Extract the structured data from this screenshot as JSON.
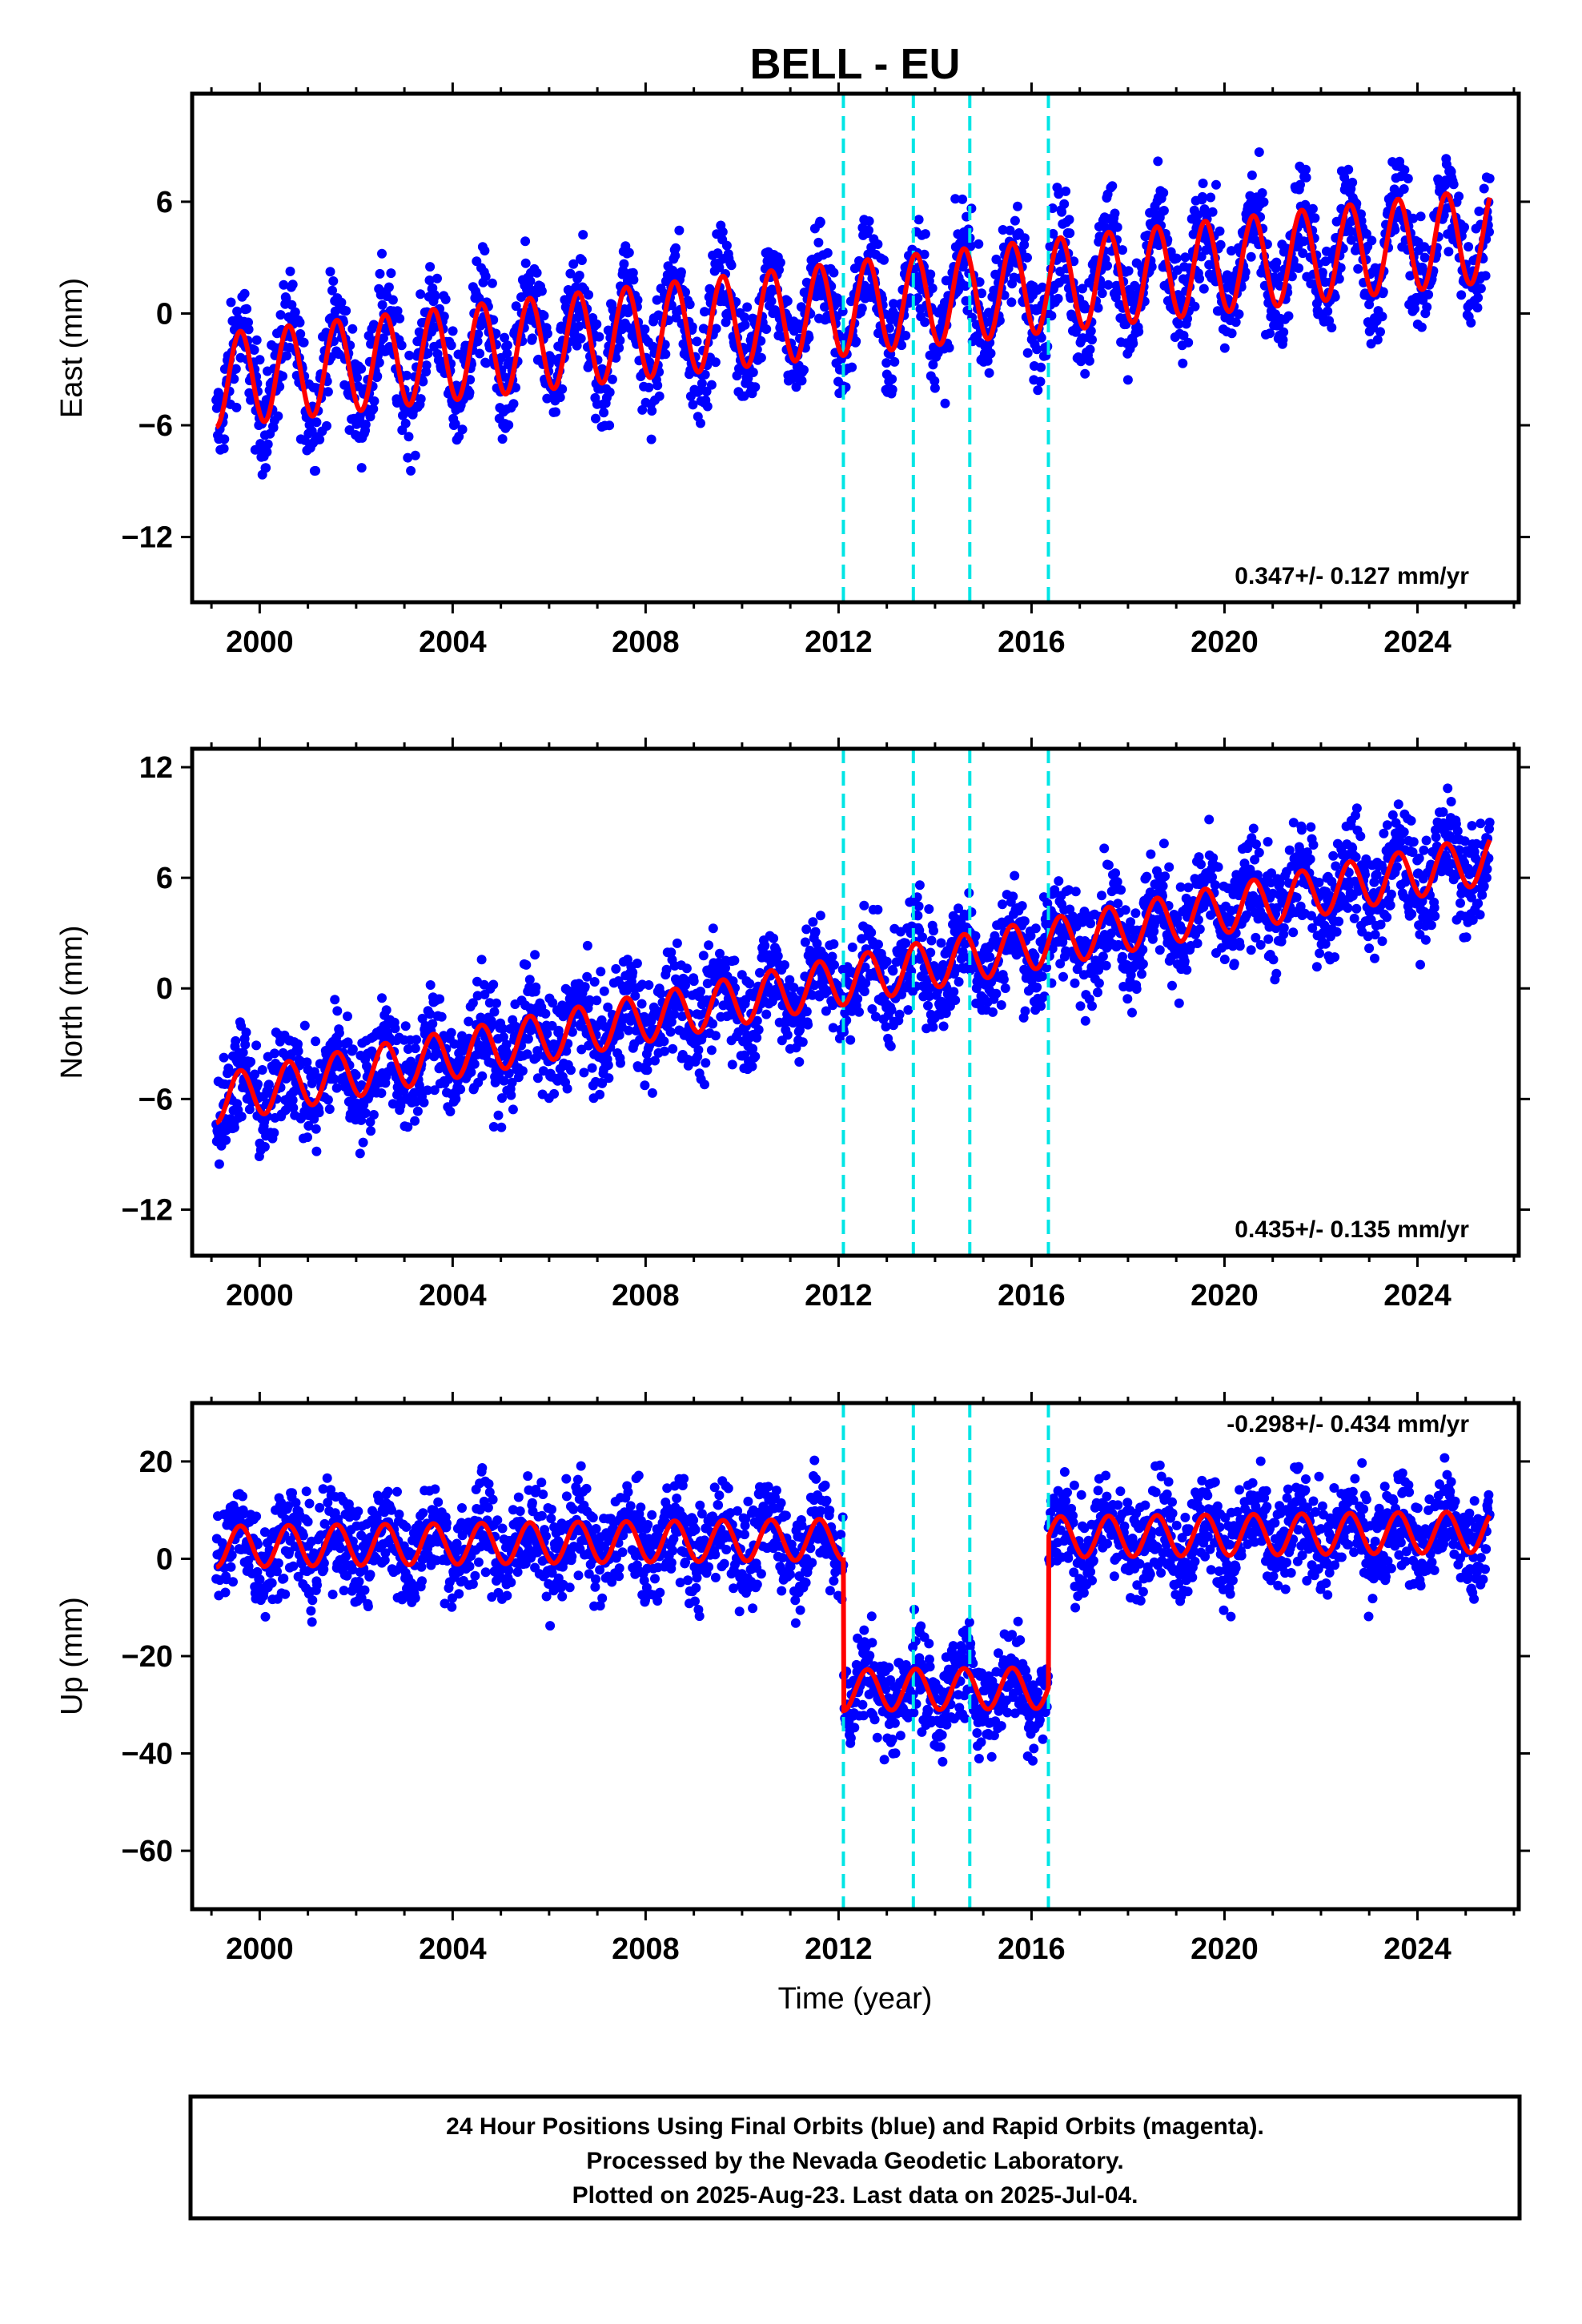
{
  "title": "BELL - EU",
  "xlabel": "Time (year)",
  "x_ticks": [
    2000,
    2004,
    2008,
    2012,
    2016,
    2020,
    2024
  ],
  "x_range": [
    1998.6,
    2026.1
  ],
  "colors": {
    "final": "#0000ff",
    "model": "#ff0000",
    "steps": "#00e5e5",
    "frame": "#000000"
  },
  "steps": [
    2012.1,
    2013.55,
    2014.72,
    2016.35
  ],
  "footer": {
    "line1": "24 Hour Positions Using Final Orbits (blue) and Rapid Orbits (magenta).",
    "line2": "Processed by the Nevada Geodetic Laboratory.",
    "line3": "Plotted on 2025-Aug-23. Last data on 2025-Jul-04."
  },
  "chart_data": [
    {
      "type": "scatter",
      "component": "East",
      "ylabel": "East (mm)",
      "ylim": [
        -15.5,
        11.8
      ],
      "y_ticks": [
        -12,
        -6,
        0,
        6
      ],
      "rate": "0.347+/- 0.127 mm/yr",
      "model": {
        "type": "seasonal",
        "trend_start": -3.6,
        "trend_end": 4.2,
        "amplitude": 2.5,
        "offsets": []
      },
      "series": [
        {
          "x": [
            1999.1,
            1999.5,
            2000.0,
            2000.5,
            2001.0,
            2002.0,
            2003.0,
            2004.0,
            2005.0,
            2006.0,
            2007.0,
            2008.0,
            2009.0,
            2010.0,
            2011.0,
            2012.0,
            2012.5,
            2013.0,
            2013.5,
            2014.0,
            2015.0,
            2016.0,
            2016.5,
            2017.0,
            2018.0,
            2019.0,
            2020.0,
            2021.0,
            2022.0,
            2023.0,
            2024.0,
            2024.5,
            2025.4
          ],
          "y": [
            -6.0,
            -1.0,
            -6.0,
            -0.5,
            -6.0,
            -5.5,
            -5.0,
            -4.5,
            -4.5,
            -4.0,
            -3.5,
            -3.0,
            -3.0,
            -2.5,
            -2.5,
            -2.0,
            0.8,
            -4.5,
            1.0,
            -4.5,
            -3.0,
            -1.5,
            4.0,
            -1.0,
            -0.8,
            -0.5,
            0.0,
            0.5,
            0.8,
            1.0,
            1.2,
            6.8,
            7.0
          ]
        }
      ]
    },
    {
      "type": "scatter",
      "component": "North",
      "ylabel": "North (mm)",
      "ylim": [
        -14.5,
        13.0
      ],
      "y_ticks": [
        -12,
        -6,
        0,
        6,
        12
      ],
      "rate": "0.435+/- 0.135 mm/yr",
      "model": {
        "type": "seasonal",
        "trend_start": -6.0,
        "trend_end": 7.0,
        "amplitude": 1.3,
        "offsets": []
      },
      "series": [
        {
          "x": [
            1999.1,
            1999.5,
            2000.5,
            2001.5,
            2002.5,
            2003.5,
            2004.5,
            2005.5,
            2006.5,
            2007.5,
            2008.5,
            2009.5,
            2010.5,
            2011.5,
            2012.5,
            2013.5,
            2014.5,
            2015.5,
            2016.5,
            2017.5,
            2018.5,
            2019.5,
            2020.5,
            2021.5,
            2022.5,
            2023.5,
            2024.5,
            2025.4
          ],
          "y": [
            -7.0,
            -4.0,
            -3.5,
            -3.0,
            -2.5,
            -2.5,
            -1.5,
            -2.5,
            -2.0,
            -1.5,
            -0.5,
            0.0,
            0.5,
            1.0,
            0.5,
            2.0,
            2.5,
            3.5,
            4.5,
            5.5,
            5.5,
            6.5,
            7.0,
            7.5,
            7.5,
            8.0,
            8.5,
            9.0
          ]
        }
      ]
    },
    {
      "type": "scatter",
      "component": "Up",
      "ylabel": "Up (mm)",
      "ylim": [
        -72,
        32
      ],
      "y_ticks": [
        -60,
        -40,
        -20,
        0,
        20
      ],
      "rate": "-0.298+/- 0.434 mm/yr",
      "model": {
        "type": "seasonal",
        "trend_start": 2.5,
        "trend_end": 5.5,
        "amplitude": 4.2,
        "offsets": [
          {
            "from": 2012.1,
            "to": 2016.35,
            "shift": -31
          }
        ]
      },
      "series": [
        {
          "x": [
            1999.1,
            1999.6,
            2000.6,
            2001.6,
            2002.6,
            2003.6,
            2004.6,
            2005.6,
            2006.6,
            2007.6,
            2008.6,
            2009.6,
            2010.6,
            2011.6,
            2012.1,
            2012.7,
            2013.7,
            2014.7,
            2015.7,
            2016.35,
            2016.6,
            2017.6,
            2018.6,
            2019.6,
            2020.6,
            2021.6,
            2022.6,
            2023.6,
            2024.6,
            2025.4
          ],
          "y": [
            -2.0,
            7.0,
            6.5,
            6.5,
            6.0,
            6.0,
            5.5,
            5.0,
            5.0,
            4.5,
            4.0,
            4.0,
            3.5,
            3.5,
            -31.0,
            -23.5,
            -24.0,
            -24.5,
            -25.0,
            9.0,
            12.0,
            11.5,
            11.0,
            11.0,
            10.5,
            10.0,
            10.0,
            9.5,
            9.5,
            9.0
          ]
        }
      ]
    }
  ]
}
